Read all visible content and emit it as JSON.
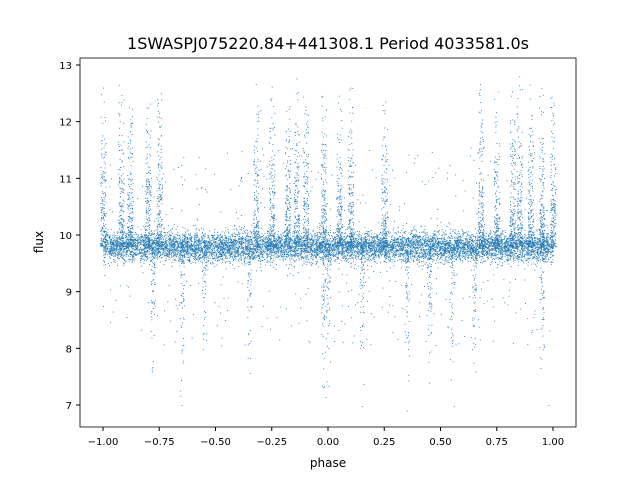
{
  "chart_data": {
    "type": "scatter",
    "title": "1SWASPJ075220.84+441308.1 Period 4033581.0s",
    "xlabel": "phase",
    "ylabel": "flux",
    "xlim": [
      -1.1,
      1.1
    ],
    "ylim": [
      6.65,
      13.15
    ],
    "xticks": [
      "−1.00",
      "−0.75",
      "−0.50",
      "−0.25",
      "0.00",
      "0.25",
      "0.50",
      "0.75",
      "1.00"
    ],
    "xtick_values": [
      -1,
      -0.75,
      -0.5,
      -0.25,
      0,
      0.25,
      0.5,
      0.75,
      1
    ],
    "yticks": [
      "7",
      "8",
      "9",
      "10",
      "11",
      "12",
      "13"
    ],
    "ytick_values": [
      7,
      8,
      9,
      10,
      11,
      12,
      13
    ],
    "grid": false,
    "marker_color": "#1f77b4",
    "baseline_flux": 9.8,
    "flare_columns_phase": [
      -1.0,
      -0.92,
      -0.88,
      -0.8,
      -0.75,
      -0.32,
      -0.25,
      -0.18,
      -0.14,
      -0.1,
      -0.02,
      0.05,
      0.1,
      0.25,
      0.68,
      0.75,
      0.82,
      0.85,
      0.9,
      0.95,
      1.0
    ],
    "dip_columns_phase": [
      -0.78,
      -0.65,
      -0.55,
      -0.35,
      -0.02,
      0.0,
      0.15,
      0.35,
      0.45,
      0.55,
      0.65,
      0.95
    ],
    "sample_points": [
      [
        -1.0,
        12.6
      ],
      [
        -0.92,
        12.3
      ],
      [
        -0.65,
        7.0
      ],
      [
        -0.3,
        12.2
      ],
      [
        -0.14,
        12.5
      ],
      [
        0.1,
        12.6
      ],
      [
        0.35,
        6.9
      ],
      [
        0.68,
        12.2
      ],
      [
        0.85,
        12.8
      ],
      [
        0.98,
        7.0
      ],
      [
        0.0,
        9.8
      ],
      [
        0.5,
        9.8
      ]
    ]
  }
}
